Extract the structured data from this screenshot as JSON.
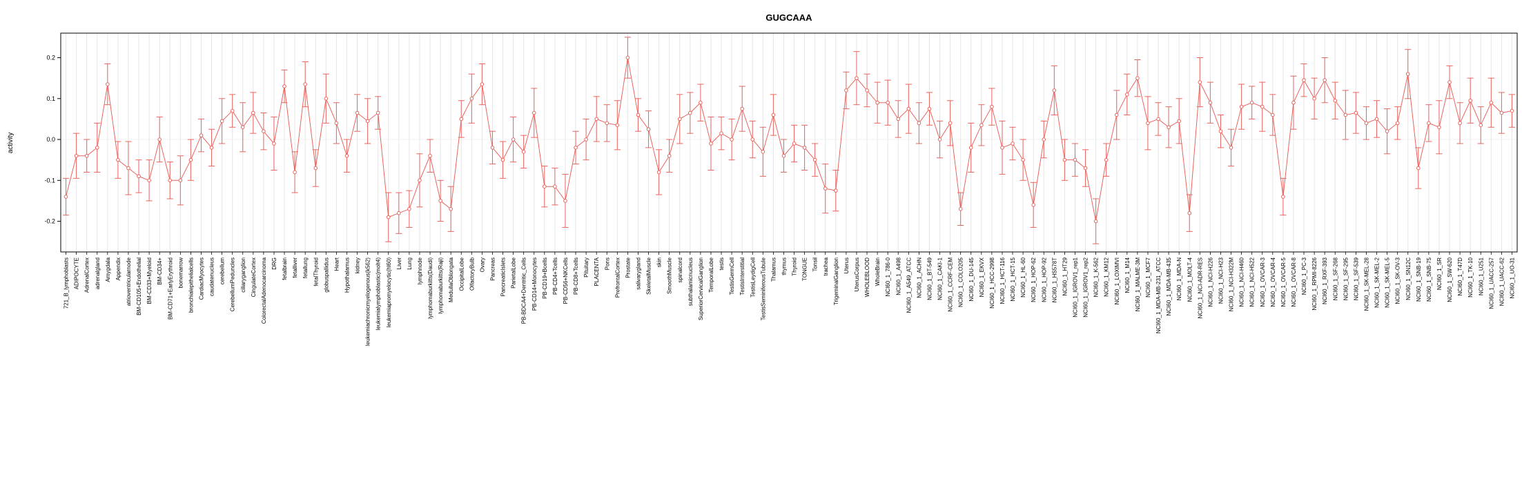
{
  "page": {
    "background": "#ffffff"
  },
  "chart_data": {
    "type": "line",
    "title": "GUGCAAA",
    "ylabel": "activity",
    "xlabel": "",
    "ylim": [
      -0.275,
      0.26
    ],
    "yticks": [
      "-0.2",
      "-0.1",
      "0.0",
      "0.1",
      "0.2"
    ],
    "grid": "vertical-per-category",
    "legend": "none",
    "point_style": "open-circle",
    "error_bars": true,
    "colors": {
      "series": "#e8645e",
      "grid": "#e6e6e6",
      "axis": "#000000",
      "zero_line": "#f0f0f0",
      "label_text": "#000000"
    },
    "categories": [
      "721_B_lymphoblasts",
      "ADIPOCYTE",
      "AdrenalCortex",
      "adrenalgland",
      "Amygdala",
      "Appendix",
      "atrioventricularnode",
      "BM-CD105+Endothelial",
      "BM-CD33+Myeloid",
      "BM-CD34+",
      "BM-CD71+EarlyErythroid",
      "bonemarrow",
      "bronchialepithelialcells",
      "CardiacMyocytes",
      "caudatenucleus",
      "cerebellum",
      "CerebellumPeduncles",
      "ciliaryganglion",
      "CingulateCortex",
      "ColorectalAdenocarcinoma",
      "DRG",
      "fetalbrain",
      "fetalliver",
      "fetallung",
      "fetalThyroid",
      "globuspallidus",
      "Heart",
      "Hypothalamus",
      "kidney",
      "leukemiachronicmyelogenous(k562)",
      "leukemialymphoblastic(molt4)",
      "leukemiapromyelocytic(hl60)",
      "Liver",
      "Lung",
      "lymphnode",
      "lymphomaburkitts(Daudi)",
      "lymphomaburkitts(Raji)",
      "MedullaOblongata",
      "OccipitalLobe",
      "OlfactoryBulb",
      "Ovary",
      "Pancreas",
      "PancreaticIslets",
      "ParietalLobe",
      "PB-BDCA4+Dentritic_Cells",
      "PB-CD14+Monocytes",
      "PB-CD19+Bcells",
      "PB-CD4+Tcells",
      "PB-CD56+NKCells",
      "PB-CD8+Tcells",
      "Pituitary",
      "PLACENTA",
      "Pons",
      "PrefrontalCortex",
      "Prostate",
      "salivarygland",
      "SkeletalMuscle",
      "skin",
      "SmoothMuscle",
      "spinalcord",
      "subthalamicnucleus",
      "SuperiorCervicalGanglion",
      "TemporalLobe",
      "testis",
      "TestisGermCell",
      "TestisInterstitial",
      "TestisLeydigCell",
      "TestisSeminiferousTubule",
      "Thalamus",
      "thymus",
      "Thyroid",
      "TONGUE",
      "Tonsil",
      "trachea",
      "TrigeminalGanglion",
      "Uterus",
      "UterusCorpus",
      "WHOLEBLOOD",
      "WholeBrain",
      "NCI60_1_786-0",
      "NCI60_1_A498",
      "NCI60_1_A549_ATCC",
      "NCI60_1_ACHN",
      "NCI60_1_BT-549",
      "NCI60_1_CAKI-1",
      "NCI60_1_CCRF-CEM",
      "NCI60_1_COLO205",
      "NCI60_1_DU-145",
      "NCI60_1_EKVX",
      "NCI60_1_HCC-2998",
      "NCI60_1_HCT-116",
      "NCI60_1_HCT-15",
      "NCI60_1_HL-60",
      "NCI60_1_HOP-62",
      "NCI60_1_HOP-92",
      "NCI60_1_HS578T",
      "NCI60_1_HT29",
      "NCI60_1_IGROV1_rep1",
      "NCI60_1_IGROV1_rep2",
      "NCI60_1_K-562",
      "NCI60_1_KM12",
      "NCI60_1_LOXIMVI",
      "NCI60_1_M14",
      "NCI60_1_MALME-3M",
      "NCI60_1_MCF7",
      "NCI60_1_MDA-MB-231_ATCC",
      "NCI60_1_MDA-MB-435",
      "NCI60_1_MDA-N",
      "NCI60_1_MOLT-4",
      "NCI60_1_NCI-ADR-RES",
      "NCI60_1_NCI-H226",
      "NCI60_1_NCI-H23",
      "NCI60_1_NCI-H322M",
      "NCI60_1_NCI-H460",
      "NCI60_1_NCI-H522",
      "NCI60_1_OVCAR-3",
      "NCI60_1_OVCAR-4",
      "NCI60_1_OVCAR-5",
      "NCI60_1_OVCAR-8",
      "NCI60_1_PC-3",
      "NCI60_1_RPMI-8226",
      "NCI60_1_RXF-393",
      "NCI60_1_SF-268",
      "NCI60_1_SF-295",
      "NCI60_1_SF-539",
      "NCI60_1_SK-MEL-28",
      "NCI60_1_SK-MEL-2",
      "NCI60_1_SK-MEL-5",
      "NCI60_1_SK-OV-3",
      "NCI60_1_SN12C",
      "NCI60_1_SNB-19",
      "NCI60_1_SNB-75",
      "NCI60_1_SR",
      "NCI60_1_SW-620",
      "NCI60_1_T47D",
      "NCI60_1_TK-10",
      "NCI60_1_U251",
      "NCI60_1_UACC-257",
      "NCI60_1_UACC-62",
      "NCI60_1_UO-31"
    ],
    "values": [
      -0.14,
      -0.04,
      -0.04,
      -0.02,
      0.135,
      -0.05,
      -0.07,
      -0.09,
      -0.1,
      0.0,
      -0.1,
      -0.1,
      -0.05,
      0.01,
      -0.02,
      0.045,
      0.07,
      0.03,
      0.065,
      0.02,
      -0.01,
      0.13,
      -0.08,
      0.135,
      -0.07,
      0.1,
      0.04,
      -0.04,
      0.065,
      0.045,
      0.065,
      -0.19,
      -0.18,
      -0.17,
      -0.1,
      -0.04,
      -0.15,
      -0.17,
      0.05,
      0.1,
      0.135,
      -0.02,
      -0.05,
      0.0,
      -0.03,
      0.065,
      -0.115,
      -0.115,
      -0.15,
      -0.02,
      0.0,
      0.05,
      0.04,
      0.035,
      0.2,
      0.06,
      0.025,
      -0.08,
      -0.04,
      0.05,
      0.065,
      0.09,
      -0.01,
      0.015,
      0.0,
      0.075,
      0.0,
      -0.03,
      0.06,
      -0.04,
      -0.01,
      -0.02,
      -0.05,
      -0.12,
      -0.125,
      0.12,
      0.15,
      0.12,
      0.09,
      0.09,
      0.05,
      0.075,
      0.04,
      0.075,
      0.0,
      0.04,
      -0.17,
      -0.02,
      0.035,
      0.08,
      -0.02,
      -0.01,
      -0.05,
      -0.16,
      0.0,
      0.12,
      -0.05,
      -0.05,
      -0.07,
      -0.2,
      -0.05,
      0.06,
      0.11,
      0.15,
      0.04,
      0.05,
      0.03,
      0.045,
      -0.18,
      0.14,
      0.09,
      0.02,
      -0.02,
      0.08,
      0.09,
      0.08,
      0.06,
      -0.14,
      0.09,
      0.145,
      0.1,
      0.145,
      0.095,
      0.06,
      0.065,
      0.04,
      0.05,
      0.02,
      0.04,
      0.16,
      -0.07,
      0.04,
      0.03,
      0.14,
      0.04,
      0.095,
      0.035,
      0.09,
      0.065,
      0.07
    ],
    "errors": [
      0.045,
      0.055,
      0.04,
      0.06,
      0.05,
      0.045,
      0.065,
      0.04,
      0.05,
      0.055,
      0.045,
      0.06,
      0.05,
      0.04,
      0.045,
      0.055,
      0.04,
      0.06,
      0.05,
      0.045,
      0.065,
      0.04,
      0.05,
      0.055,
      0.045,
      0.06,
      0.05,
      0.04,
      0.045,
      0.055,
      0.04,
      0.06,
      0.05,
      0.045,
      0.065,
      0.04,
      0.05,
      0.055,
      0.045,
      0.06,
      0.05,
      0.04,
      0.045,
      0.055,
      0.04,
      0.06,
      0.05,
      0.045,
      0.065,
      0.04,
      0.05,
      0.055,
      0.045,
      0.06,
      0.05,
      0.04,
      0.045,
      0.055,
      0.04,
      0.06,
      0.05,
      0.045,
      0.065,
      0.04,
      0.05,
      0.055,
      0.045,
      0.06,
      0.05,
      0.04,
      0.045,
      0.055,
      0.04,
      0.06,
      0.05,
      0.045,
      0.065,
      0.04,
      0.05,
      0.055,
      0.045,
      0.06,
      0.05,
      0.04,
      0.045,
      0.055,
      0.04,
      0.06,
      0.05,
      0.045,
      0.065,
      0.04,
      0.05,
      0.055,
      0.045,
      0.06,
      0.05,
      0.04,
      0.045,
      0.055,
      0.04,
      0.06,
      0.05,
      0.045,
      0.065,
      0.04,
      0.05,
      0.055,
      0.045,
      0.06,
      0.05,
      0.04,
      0.045,
      0.055,
      0.04,
      0.06,
      0.05,
      0.045,
      0.065,
      0.04,
      0.05,
      0.055,
      0.045,
      0.06,
      0.05,
      0.04,
      0.045,
      0.055,
      0.04,
      0.06,
      0.05,
      0.045,
      0.065,
      0.04,
      0.05,
      0.055,
      0.045,
      0.06,
      0.05,
      0.04
    ]
  }
}
